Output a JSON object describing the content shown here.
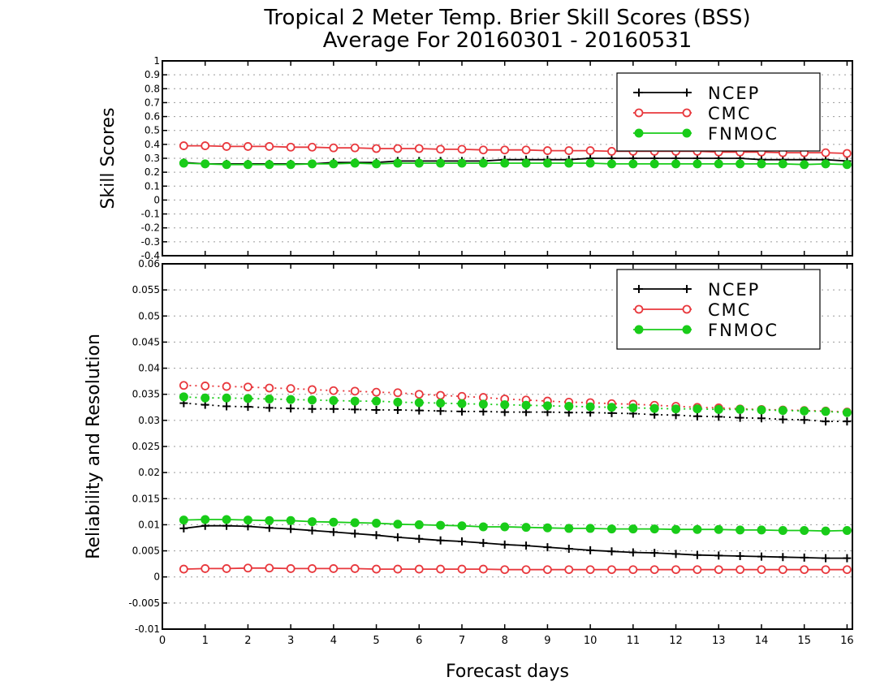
{
  "header": {
    "title_line1": "Tropical 2 Meter Temp. Brier Skill Scores (BSS)",
    "title_line2": "Average For 20160301 - 20160531"
  },
  "colors": {
    "NCEP": "#000000",
    "CMC": "#e8383d",
    "FNMOC": "#19cc19"
  },
  "chart_data": [
    {
      "type": "line",
      "title": "Tropical 2 Meter Temp. Brier Skill Scores (BSS)",
      "subtitle": "Average For 20160301 - 20160531",
      "xlabel": "Forecast days",
      "ylabel": "Skill Scores",
      "xlim": [
        0,
        16.125
      ],
      "ylim": [
        -0.4,
        1
      ],
      "yticks": [
        "-0.4",
        "-0.3",
        "-0.2",
        "-0.1",
        "0",
        "0.1",
        "0.2",
        "0.3",
        "0.4",
        "0.5",
        "0.6",
        "0.7",
        "0.8",
        "0.9",
        "1"
      ],
      "grid": true,
      "legend_position": "top-right",
      "legend": [
        "NCEP",
        "CMC",
        "FNMOC"
      ],
      "x": [
        0.5,
        1,
        1.5,
        2,
        2.5,
        3,
        3.5,
        4,
        4.5,
        5,
        5.5,
        6,
        6.5,
        7,
        7.5,
        8,
        8.5,
        9,
        9.5,
        10,
        10.5,
        11,
        11.5,
        12,
        12.5,
        13,
        13.5,
        14,
        14.5,
        15,
        15.5,
        16
      ],
      "series": [
        {
          "name": "NCEP",
          "marker": "plus",
          "style": "solid",
          "values": [
            0.27,
            0.26,
            0.26,
            0.26,
            0.26,
            0.26,
            0.26,
            0.27,
            0.27,
            0.27,
            0.28,
            0.28,
            0.28,
            0.28,
            0.28,
            0.29,
            0.29,
            0.29,
            0.29,
            0.3,
            0.3,
            0.3,
            0.3,
            0.3,
            0.3,
            0.3,
            0.3,
            0.29,
            0.29,
            0.29,
            0.29,
            0.28
          ]
        },
        {
          "name": "CMC",
          "marker": "circle-open",
          "style": "solid",
          "values": [
            0.39,
            0.39,
            0.385,
            0.385,
            0.385,
            0.38,
            0.38,
            0.375,
            0.375,
            0.37,
            0.37,
            0.37,
            0.365,
            0.365,
            0.36,
            0.36,
            0.36,
            0.355,
            0.355,
            0.355,
            0.35,
            0.35,
            0.35,
            0.35,
            0.35,
            0.345,
            0.345,
            0.345,
            0.34,
            0.34,
            0.34,
            0.335
          ]
        },
        {
          "name": "FNMOC",
          "marker": "circle-filled",
          "style": "solid",
          "values": [
            0.265,
            0.26,
            0.255,
            0.255,
            0.255,
            0.255,
            0.26,
            0.26,
            0.265,
            0.26,
            0.265,
            0.265,
            0.265,
            0.265,
            0.265,
            0.265,
            0.265,
            0.265,
            0.265,
            0.265,
            0.26,
            0.26,
            0.26,
            0.26,
            0.26,
            0.26,
            0.26,
            0.26,
            0.26,
            0.255,
            0.26,
            0.255
          ]
        }
      ]
    },
    {
      "type": "line",
      "xlabel": "Forecast days",
      "ylabel": "Reliability and Resolution",
      "xlim": [
        0,
        16.125
      ],
      "ylim": [
        -0.01,
        0.06
      ],
      "yticks": [
        "-0.01",
        "-0.005",
        "0",
        "0.005",
        "0.01",
        "0.015",
        "0.02",
        "0.025",
        "0.03",
        "0.035",
        "0.04",
        "0.045",
        "0.05",
        "0.055",
        "0.06"
      ],
      "xticks": [
        "0",
        "1",
        "2",
        "3",
        "4",
        "5",
        "6",
        "7",
        "8",
        "9",
        "10",
        "11",
        "12",
        "13",
        "14",
        "15",
        "16"
      ],
      "grid": true,
      "legend_position": "top-right",
      "legend": [
        "NCEP",
        "CMC",
        "FNMOC"
      ],
      "x": [
        0.5,
        1,
        1.5,
        2,
        2.5,
        3,
        3.5,
        4,
        4.5,
        5,
        5.5,
        6,
        6.5,
        7,
        7.5,
        8,
        8.5,
        9,
        9.5,
        10,
        10.5,
        11,
        11.5,
        12,
        12.5,
        13,
        13.5,
        14,
        14.5,
        15,
        15.5,
        16
      ],
      "series": [
        {
          "name": "NCEP",
          "metric": "resolution",
          "marker": "plus",
          "style": "dotted",
          "values": [
            0.0333,
            0.033,
            0.0327,
            0.0326,
            0.0324,
            0.0323,
            0.0322,
            0.0322,
            0.0321,
            0.032,
            0.032,
            0.0319,
            0.0318,
            0.0317,
            0.0317,
            0.0316,
            0.0316,
            0.0316,
            0.0315,
            0.0315,
            0.0314,
            0.0313,
            0.0311,
            0.031,
            0.0308,
            0.0307,
            0.0305,
            0.0304,
            0.0302,
            0.0301,
            0.0298,
            0.0298
          ]
        },
        {
          "name": "CMC",
          "metric": "resolution",
          "marker": "circle-open",
          "style": "dotted",
          "values": [
            0.0367,
            0.0366,
            0.0365,
            0.0364,
            0.0362,
            0.0361,
            0.0359,
            0.0357,
            0.0356,
            0.0354,
            0.0353,
            0.035,
            0.0348,
            0.0346,
            0.0344,
            0.0341,
            0.0339,
            0.0337,
            0.0335,
            0.0334,
            0.0332,
            0.0331,
            0.0329,
            0.0327,
            0.0325,
            0.0324,
            0.0322,
            0.0321,
            0.032,
            0.0319,
            0.0318,
            0.0316
          ]
        },
        {
          "name": "FNMOC",
          "metric": "resolution",
          "marker": "circle-filled",
          "style": "dotted",
          "values": [
            0.0345,
            0.0343,
            0.0343,
            0.0342,
            0.0341,
            0.034,
            0.0339,
            0.0338,
            0.0337,
            0.0337,
            0.0335,
            0.0334,
            0.0333,
            0.0332,
            0.0331,
            0.033,
            0.0329,
            0.0328,
            0.0327,
            0.0326,
            0.0325,
            0.0324,
            0.0323,
            0.0322,
            0.0322,
            0.0321,
            0.0321,
            0.032,
            0.0319,
            0.0318,
            0.0317,
            0.0315
          ]
        },
        {
          "name": "NCEP",
          "metric": "reliability",
          "marker": "plus",
          "style": "solid",
          "values": [
            0.0093,
            0.0098,
            0.0098,
            0.0097,
            0.0094,
            0.0092,
            0.0089,
            0.0086,
            0.0083,
            0.008,
            0.0076,
            0.0073,
            0.007,
            0.0068,
            0.0065,
            0.0062,
            0.006,
            0.0057,
            0.0054,
            0.0051,
            0.0049,
            0.0047,
            0.0046,
            0.0044,
            0.0042,
            0.0041,
            0.004,
            0.0039,
            0.0038,
            0.0037,
            0.0036,
            0.0036
          ]
        },
        {
          "name": "CMC",
          "metric": "reliability",
          "marker": "circle-open",
          "style": "solid",
          "values": [
            0.0015,
            0.0016,
            0.0016,
            0.0017,
            0.0017,
            0.0016,
            0.0016,
            0.0016,
            0.0016,
            0.0015,
            0.0015,
            0.0015,
            0.0015,
            0.0015,
            0.0015,
            0.0014,
            0.0014,
            0.0014,
            0.0014,
            0.0014,
            0.0014,
            0.0014,
            0.0014,
            0.0014,
            0.0014,
            0.0014,
            0.0014,
            0.0014,
            0.0014,
            0.0014,
            0.0014,
            0.0014
          ]
        },
        {
          "name": "FNMOC",
          "metric": "reliability",
          "marker": "circle-filled",
          "style": "solid",
          "values": [
            0.0109,
            0.011,
            0.011,
            0.0109,
            0.0108,
            0.0108,
            0.0106,
            0.0105,
            0.0104,
            0.0103,
            0.0101,
            0.01,
            0.0099,
            0.0098,
            0.0096,
            0.0096,
            0.0095,
            0.0094,
            0.0093,
            0.0093,
            0.0092,
            0.0092,
            0.0092,
            0.0091,
            0.0091,
            0.0091,
            0.009,
            0.009,
            0.0089,
            0.0089,
            0.0088,
            0.0089
          ]
        }
      ]
    }
  ]
}
